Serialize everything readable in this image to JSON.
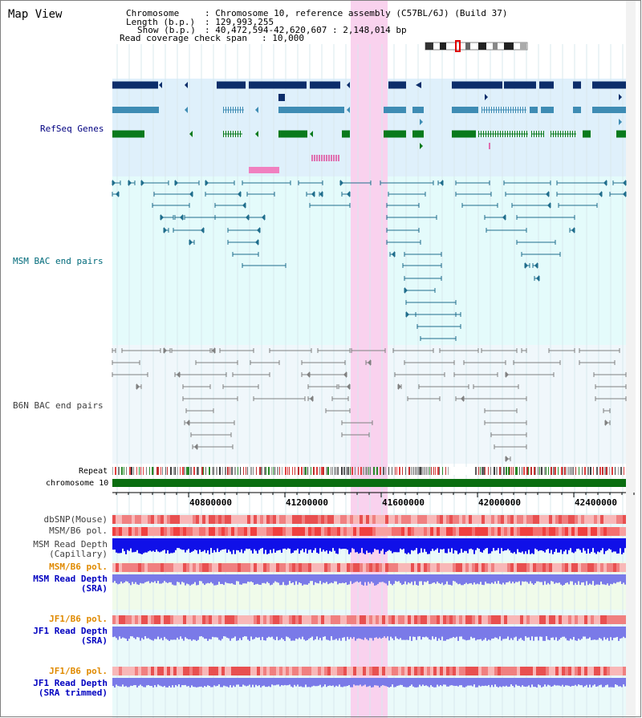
{
  "view": {
    "title": "Map View",
    "header": {
      "chromosome_label": "Chromosome",
      "chromosome_value": "Chromosome 10, reference assembly (C57BL/6J) (Build 37)",
      "length_label": "Length (b.p.)",
      "length_value": "129,993,255",
      "show_label": "Show (b.p.)",
      "show_value": "40,472,594-42,620,607 : 2,148,014 bp",
      "coverage_label": "Read coverage check span",
      "coverage_value": "10,000"
    },
    "region": {
      "start": 40472594,
      "end": 42620607
    }
  },
  "tracks": {
    "refseq": "RefSeq Genes",
    "msm_bac": "MSM BAC end pairs",
    "b6n_bac": "B6N BAC end pairs",
    "repeat": "Repeat",
    "chromosome": "chromosome 10",
    "dbsnp": "dbSNP(Mouse)",
    "msm_b6_pol_1": "MSM/B6 pol.",
    "msm_depth_cap": "MSM Read Depth\n(Capillary)",
    "msm_b6_pol_2": "MSM/B6 pol.",
    "msm_depth_sra": "MSM Read Depth\n(SRA)",
    "jf1_b6_pol_1": "JF1/B6 pol.",
    "jf1_depth_sra": "JF1 Read Depth\n(SRA)",
    "jf1_b6_pol_2": "JF1/B6 pol.",
    "jf1_depth_trim": "JF1 Read Depth\n(SRA trimmed)"
  },
  "axis": {
    "ticks": [
      "40800000",
      "41200000",
      "41600000",
      "42000000",
      "42400000"
    ]
  },
  "colors": {
    "refseq_bg": "#dff0fb",
    "msm_bg": "#e4fbfb",
    "b6n_bg": "#f0f7fb",
    "highlight": "#f9d2ee",
    "gene_navy": "#0c2d6a",
    "gene_teal": "#3e8cb4",
    "gene_green": "#0a7a1c",
    "bac_teal": "#1f6d8c",
    "bac_gray": "#808080",
    "chrom_green": "#0a6e10",
    "depth_blue": "#1010e8",
    "depth_violet": "#7a7ae8",
    "label_navy": "#000080",
    "label_teal": "#006a7a",
    "label_gray": "#404040",
    "label_orange": "#e08a00",
    "label_blue": "#0000c0"
  }
}
